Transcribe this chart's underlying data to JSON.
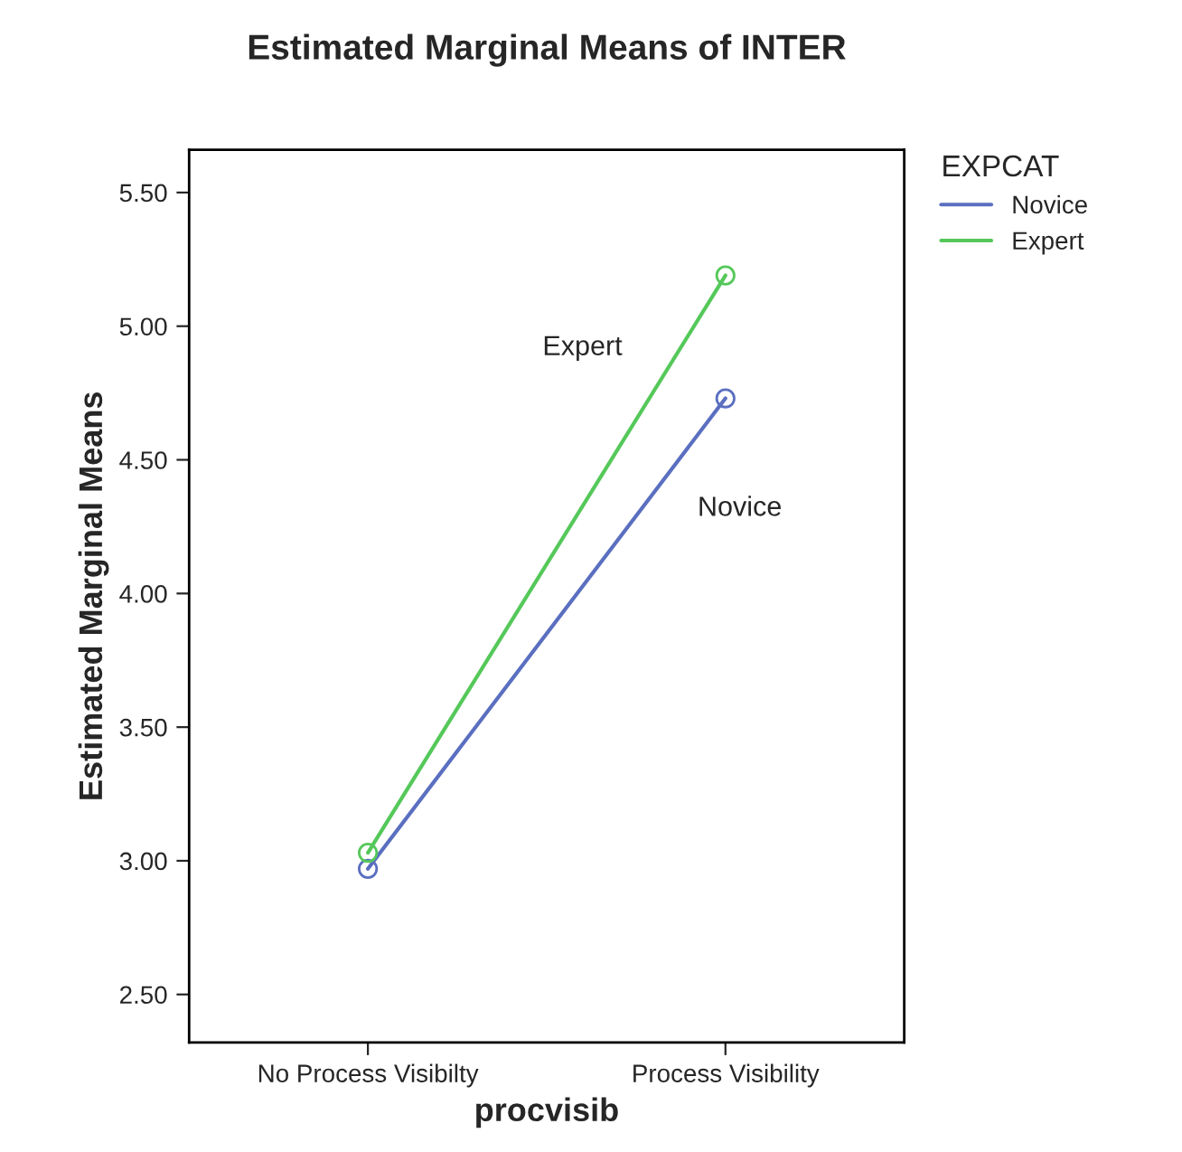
{
  "chart_data": {
    "type": "line",
    "title": "Estimated Marginal Means of INTER",
    "xlabel": "procvisib",
    "ylabel": "Estimated Marginal Means",
    "legend_title": "EXPCAT",
    "categories": [
      "No Process Visibilty",
      "Process Visibility"
    ],
    "series": [
      {
        "name": "Novice",
        "color": "#5b6fc0",
        "values": [
          2.97,
          4.73
        ]
      },
      {
        "name": "Expert",
        "color": "#55c85a",
        "values": [
          3.03,
          5.19
        ]
      }
    ],
    "annotations": [
      "Expert",
      "Novice"
    ],
    "ylim": [
      2.32,
      5.66
    ],
    "yticks": [
      {
        "value": 2.5,
        "label": "2.50"
      },
      {
        "value": 3.0,
        "label": "3.00"
      },
      {
        "value": 3.5,
        "label": "3.50"
      },
      {
        "value": 4.0,
        "label": "4.00"
      },
      {
        "value": 4.5,
        "label": "4.50"
      },
      {
        "value": 5.0,
        "label": "5.00"
      },
      {
        "value": 5.5,
        "label": "5.50"
      }
    ],
    "marker": "circle",
    "legend": "top right",
    "grid": false
  }
}
